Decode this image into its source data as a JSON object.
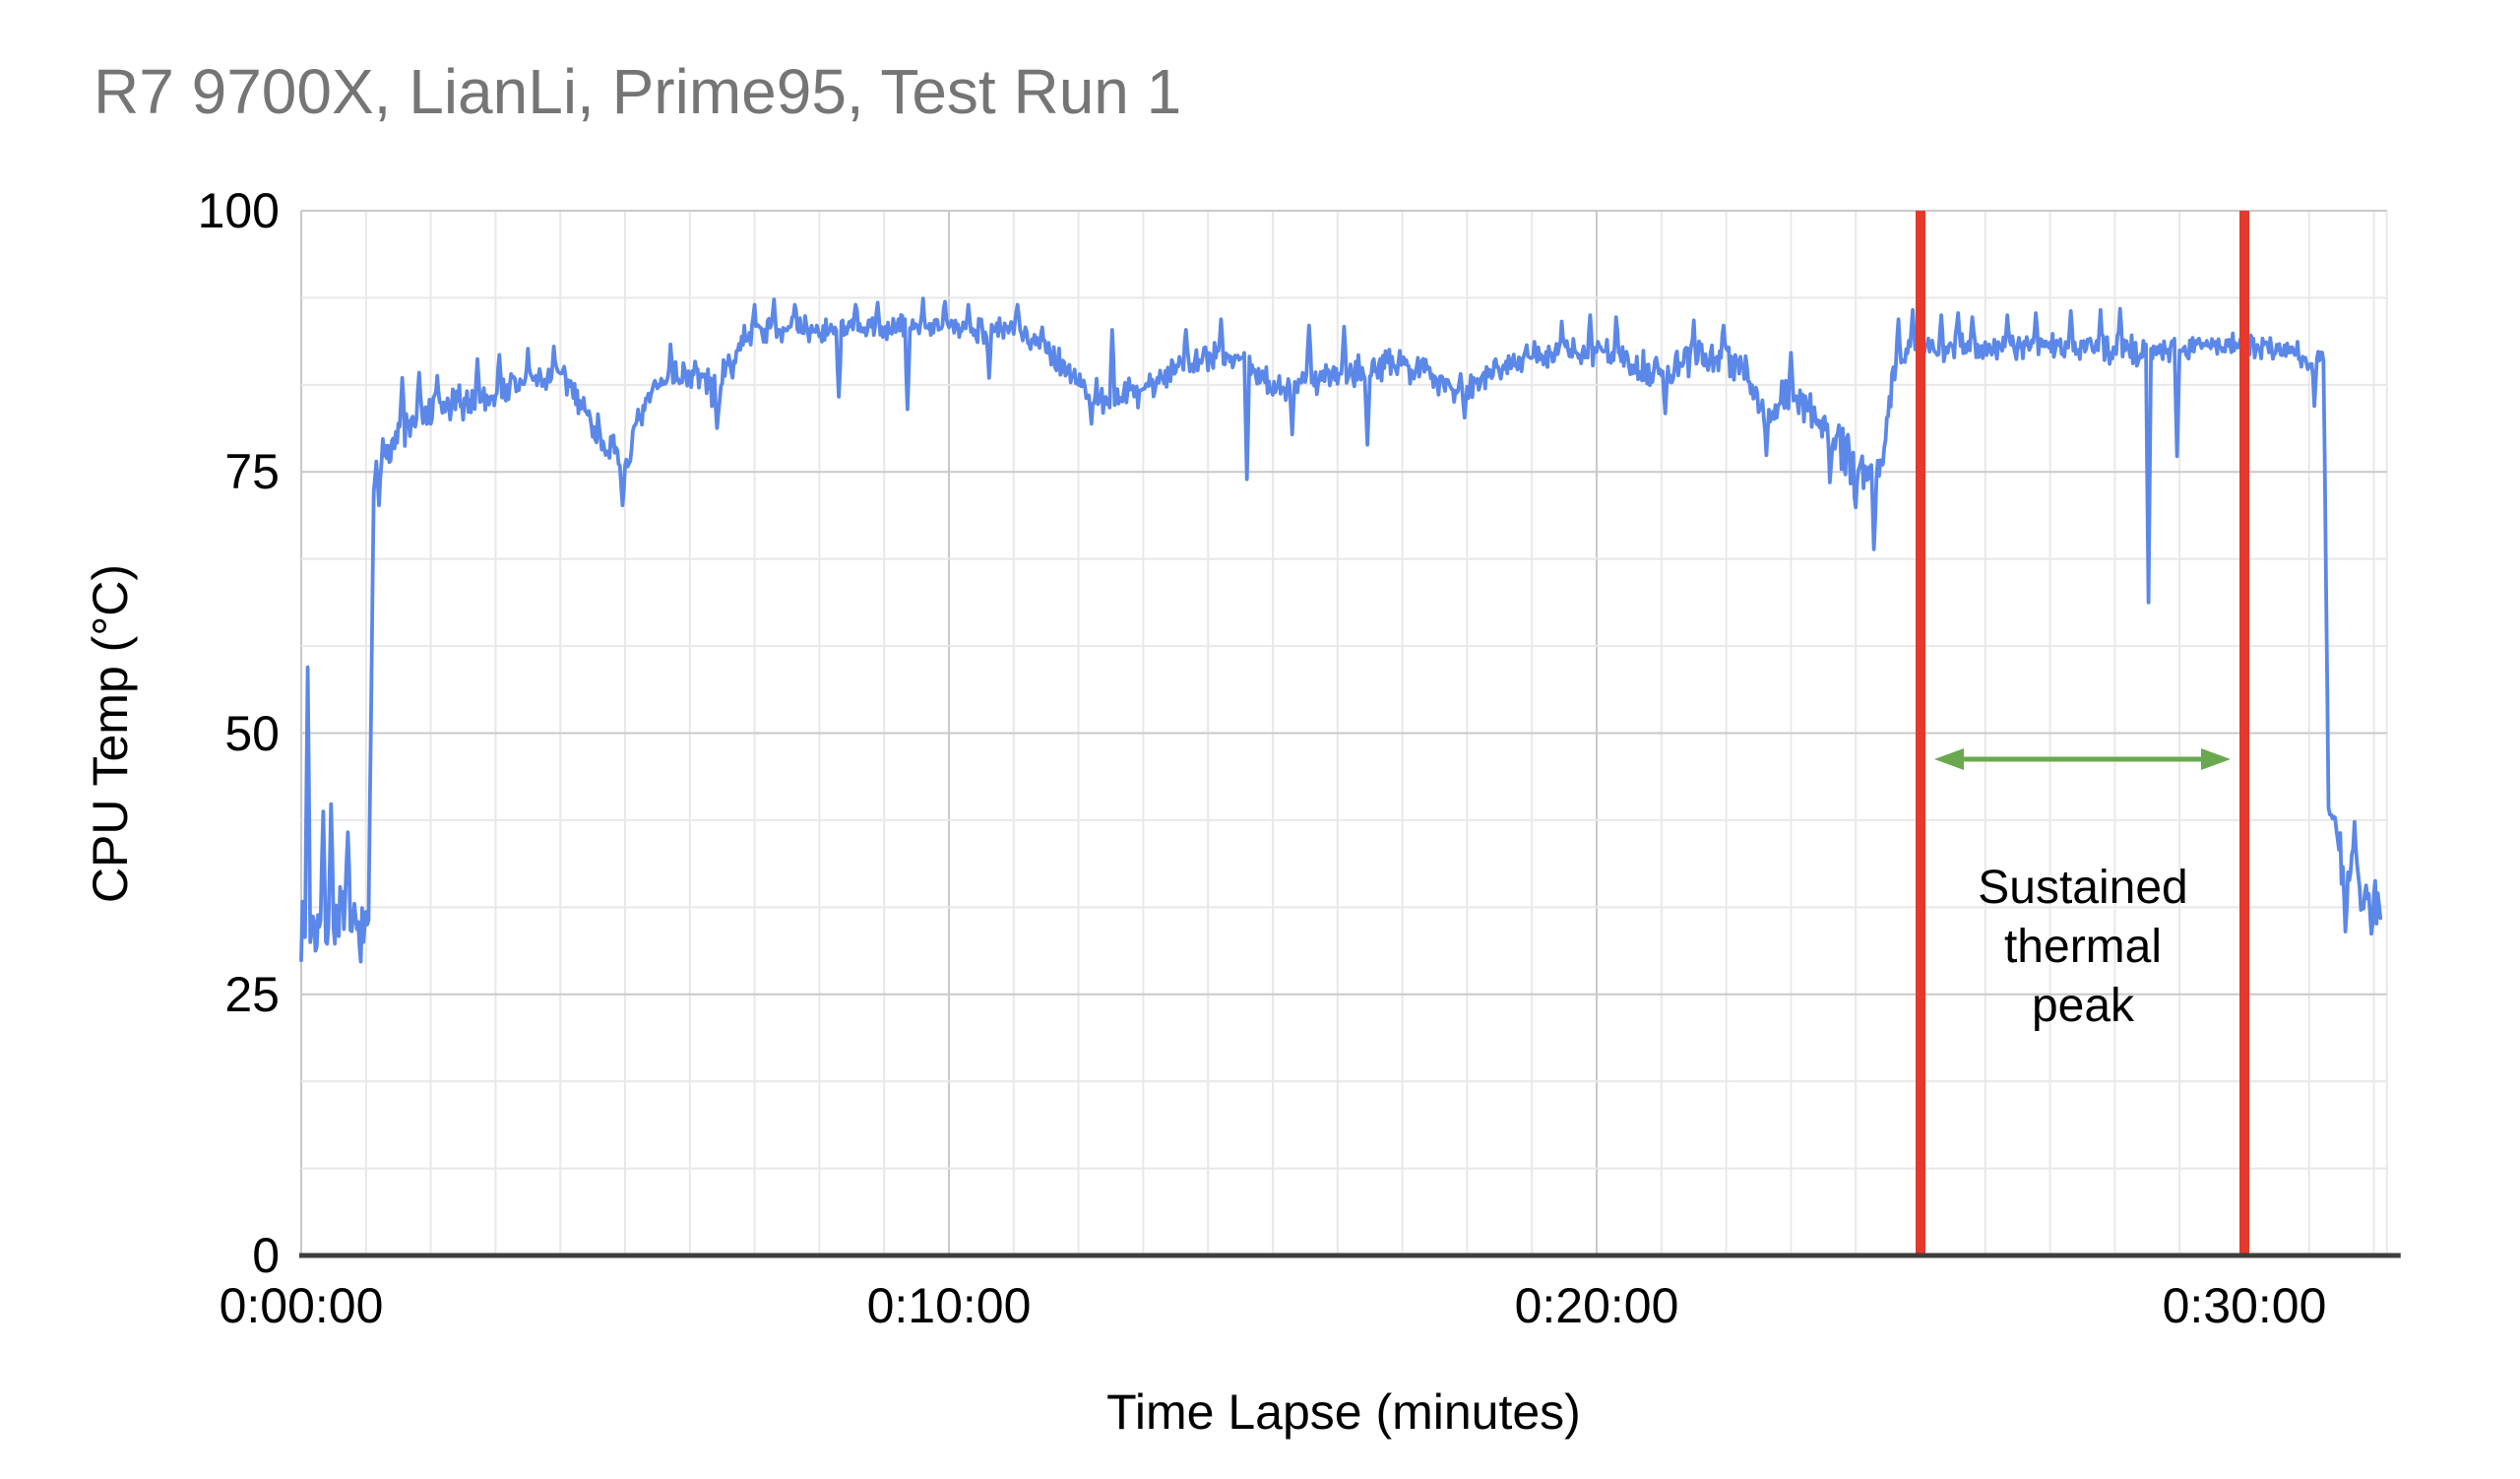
{
  "chart": {
    "title": {
      "text": "R7 9700X, LianLi, Prime95, Test Run 1",
      "color": "#757575"
    },
    "y_axis": {
      "title": "CPU Temp (°C)",
      "min": 0,
      "max": 100,
      "major_ticks": [
        0,
        25,
        50,
        75,
        100
      ],
      "minor_gridlines_between_majors": 2
    },
    "x_axis": {
      "title": "Time Lapse (minutes)",
      "major_ticks": [
        {
          "minutes": 0,
          "label": "0:00:00"
        },
        {
          "minutes": 10,
          "label": "0:10:00"
        },
        {
          "minutes": 20,
          "label": "0:20:00"
        },
        {
          "minutes": 30,
          "label": "0:30:00"
        }
      ],
      "minor_step_minutes": 1,
      "max_minutes": 32.2
    },
    "colors": {
      "series": "#5b87e8",
      "marker_line": "#e6392c",
      "arrow": "#6aa84f",
      "grid_minor": "#e8e8e8",
      "grid_major": "#c9c9c9",
      "axis_line": "#3d3d3d",
      "tick_text": "#000000"
    },
    "annotation": {
      "lines": [
        "Sustained",
        "thermal",
        "peak"
      ],
      "arrow_temp_c": 47.5
    },
    "marker_lines_minutes": [
      25,
      30
    ]
  },
  "chart_data": {
    "type": "line",
    "title": "R7 9700X, LianLi, Prime95, Test Run 1",
    "xlabel": "Time Lapse (minutes)",
    "ylabel": "CPU Temp (°C)",
    "series_name": "CPU Temp",
    "x_unit": "minutes",
    "ylim": [
      0,
      100
    ],
    "xlim_minutes": [
      0,
      32.2
    ],
    "grid": "on",
    "legend": "none",
    "marker_lines_minutes": [
      25,
      30
    ],
    "annotation": {
      "text": "Sustained thermal peak",
      "span_minutes": [
        25,
        30
      ],
      "arrow_temp_c": 47.5
    },
    "sample_step_minutes": 0.02,
    "envelope_anchors": [
      [
        0.0,
        31.5,
        2.8
      ],
      [
        0.35,
        31.5,
        2.8
      ],
      [
        0.6,
        33.0,
        3.0
      ],
      [
        0.85,
        31.0,
        2.6
      ],
      [
        1.04,
        31.0,
        2.0
      ],
      [
        1.12,
        74.0,
        1.6
      ],
      [
        1.3,
        77.5,
        1.8
      ],
      [
        1.6,
        79.0,
        1.8
      ],
      [
        2.0,
        80.5,
        1.7
      ],
      [
        2.4,
        81.5,
        1.6
      ],
      [
        2.8,
        82.0,
        1.6
      ],
      [
        3.2,
        83.0,
        1.5
      ],
      [
        3.6,
        83.8,
        1.5
      ],
      [
        4.0,
        84.0,
        1.5
      ],
      [
        4.2,
        83.0,
        1.5
      ],
      [
        4.5,
        79.5,
        1.7
      ],
      [
        4.8,
        77.0,
        1.5
      ],
      [
        4.97,
        74.8,
        1.3
      ],
      [
        5.15,
        78.5,
        1.6
      ],
      [
        5.45,
        83.0,
        1.5
      ],
      [
        5.8,
        84.3,
        1.4
      ],
      [
        6.15,
        84.3,
        1.4
      ],
      [
        6.4,
        82.5,
        1.6
      ],
      [
        6.65,
        85.5,
        1.4
      ],
      [
        6.9,
        88.3,
        1.3
      ],
      [
        7.4,
        88.8,
        1.2
      ],
      [
        8.0,
        88.5,
        1.2
      ],
      [
        8.6,
        88.6,
        1.3
      ],
      [
        9.2,
        88.8,
        1.2
      ],
      [
        9.8,
        88.8,
        1.2
      ],
      [
        10.4,
        88.7,
        1.2
      ],
      [
        11.0,
        88.6,
        1.2
      ],
      [
        11.4,
        87.8,
        1.3
      ],
      [
        11.8,
        85.0,
        1.4
      ],
      [
        12.1,
        83.0,
        1.4
      ],
      [
        12.5,
        81.8,
        1.4
      ],
      [
        12.9,
        82.8,
        1.5
      ],
      [
        13.3,
        84.0,
        1.4
      ],
      [
        13.6,
        85.5,
        1.3
      ],
      [
        14.1,
        86.2,
        1.3
      ],
      [
        14.55,
        85.8,
        1.3
      ],
      [
        14.8,
        83.8,
        1.5
      ],
      [
        15.2,
        83.0,
        1.6
      ],
      [
        15.6,
        84.0,
        1.5
      ],
      [
        16.0,
        84.5,
        1.5
      ],
      [
        16.4,
        84.8,
        1.5
      ],
      [
        16.8,
        85.2,
        1.4
      ],
      [
        17.3,
        85.0,
        1.4
      ],
      [
        17.7,
        83.5,
        1.5
      ],
      [
        18.0,
        82.8,
        1.5
      ],
      [
        18.3,
        84.5,
        1.4
      ],
      [
        18.7,
        85.8,
        1.3
      ],
      [
        19.2,
        86.2,
        1.3
      ],
      [
        19.7,
        86.5,
        1.3
      ],
      [
        20.2,
        86.3,
        1.3
      ],
      [
        20.6,
        85.2,
        1.7
      ],
      [
        21.0,
        84.2,
        1.9
      ],
      [
        21.4,
        85.5,
        1.6
      ],
      [
        21.9,
        86.2,
        1.4
      ],
      [
        22.3,
        85.0,
        1.5
      ],
      [
        22.6,
        80.5,
        1.7
      ],
      [
        22.9,
        82.0,
        1.7
      ],
      [
        23.2,
        82.0,
        1.8
      ],
      [
        23.5,
        79.5,
        2.0
      ],
      [
        23.9,
        76.5,
        2.3
      ],
      [
        24.2,
        74.8,
        2.3
      ],
      [
        24.42,
        76.0,
        2.0
      ],
      [
        24.6,
        85.5,
        1.6
      ],
      [
        24.85,
        87.0,
        1.4
      ],
      [
        25.3,
        86.8,
        1.3
      ],
      [
        25.8,
        86.9,
        1.3
      ],
      [
        26.3,
        87.0,
        1.2
      ],
      [
        26.8,
        87.0,
        1.2
      ],
      [
        27.3,
        87.0,
        1.3
      ],
      [
        27.8,
        86.7,
        1.4
      ],
      [
        28.2,
        86.5,
        1.4
      ],
      [
        28.5,
        86.5,
        1.2
      ],
      [
        28.8,
        86.9,
        1.1
      ],
      [
        29.2,
        87.1,
        1.0
      ],
      [
        29.7,
        87.2,
        1.0
      ],
      [
        30.2,
        87.0,
        1.0
      ],
      [
        30.7,
        86.8,
        1.0
      ],
      [
        31.05,
        85.5,
        1.3
      ],
      [
        31.22,
        86.3,
        0.8
      ],
      [
        31.3,
        43.5,
        1.5
      ],
      [
        31.45,
        38.5,
        2.6
      ],
      [
        31.65,
        36.5,
        2.6
      ],
      [
        31.85,
        35.0,
        2.4
      ],
      [
        32.0,
        34.0,
        2.2
      ],
      [
        32.1,
        33.0,
        2.0
      ]
    ],
    "spikes": [
      [
        0.1,
        56.3
      ],
      [
        0.33,
        42.5
      ],
      [
        0.45,
        43.2
      ],
      [
        0.72,
        40.5
      ],
      [
        1.2,
        71.8
      ],
      [
        1.55,
        84.0
      ],
      [
        1.82,
        84.5
      ],
      [
        2.1,
        84.2
      ],
      [
        2.72,
        85.8
      ],
      [
        3.05,
        86.2
      ],
      [
        3.5,
        86.8
      ],
      [
        3.9,
        87.0
      ],
      [
        4.97,
        71.8
      ],
      [
        5.7,
        87.2
      ],
      [
        6.42,
        79.2
      ],
      [
        7.0,
        91.0
      ],
      [
        7.3,
        91.5
      ],
      [
        7.62,
        91.0
      ],
      [
        8.3,
        82.2
      ],
      [
        8.55,
        91.0
      ],
      [
        8.9,
        91.2
      ],
      [
        9.35,
        81.0
      ],
      [
        9.6,
        91.6
      ],
      [
        9.95,
        91.3
      ],
      [
        10.3,
        91.0
      ],
      [
        10.62,
        84.0
      ],
      [
        11.05,
        91.0
      ],
      [
        12.2,
        79.6
      ],
      [
        12.52,
        88.6
      ],
      [
        13.65,
        88.6
      ],
      [
        14.2,
        89.6
      ],
      [
        14.6,
        74.3
      ],
      [
        15.3,
        78.6
      ],
      [
        15.55,
        89.0
      ],
      [
        16.1,
        88.9
      ],
      [
        16.45,
        77.6
      ],
      [
        17.95,
        80.2
      ],
      [
        19.45,
        89.4
      ],
      [
        19.9,
        90.0
      ],
      [
        20.3,
        89.8
      ],
      [
        21.05,
        80.6
      ],
      [
        21.5,
        89.5
      ],
      [
        21.95,
        89.0
      ],
      [
        22.62,
        76.6
      ],
      [
        23.0,
        86.4
      ],
      [
        23.6,
        74.0
      ],
      [
        24.0,
        71.6
      ],
      [
        24.27,
        67.6
      ],
      [
        24.65,
        89.6
      ],
      [
        24.88,
        90.5
      ],
      [
        25.32,
        90.0
      ],
      [
        25.58,
        90.2
      ],
      [
        25.8,
        89.8
      ],
      [
        26.33,
        90.0
      ],
      [
        26.78,
        90.2
      ],
      [
        27.32,
        90.4
      ],
      [
        27.77,
        90.5
      ],
      [
        28.07,
        90.6
      ],
      [
        28.52,
        62.5
      ],
      [
        28.95,
        76.5
      ],
      [
        31.07,
        81.3
      ],
      [
        31.38,
        42.0
      ],
      [
        31.55,
        31.0
      ],
      [
        31.7,
        41.5
      ],
      [
        31.95,
        30.8
      ]
    ]
  }
}
